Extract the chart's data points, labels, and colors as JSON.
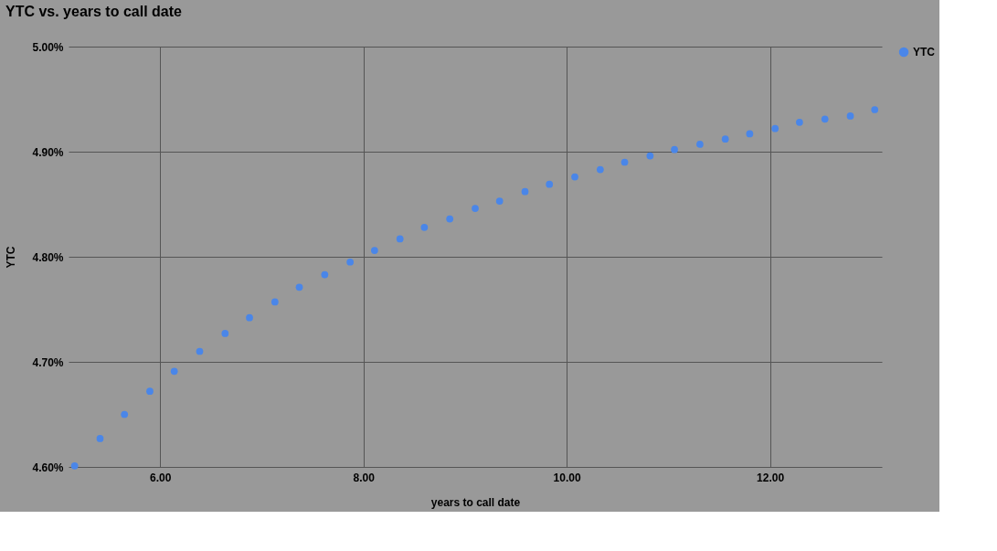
{
  "chart_data": {
    "type": "scatter",
    "title": "YTC vs. years to call date",
    "xlabel": "years to call date",
    "ylabel": "YTC",
    "x": [
      5.16,
      5.41,
      5.65,
      5.9,
      6.14,
      6.39,
      6.64,
      6.88,
      7.13,
      7.37,
      7.62,
      7.87,
      8.11,
      8.36,
      8.6,
      8.85,
      9.1,
      9.34,
      9.59,
      9.83,
      10.08,
      10.33,
      10.57,
      10.82,
      11.06,
      11.31,
      11.56,
      11.8,
      12.05,
      12.29,
      12.54,
      12.79,
      13.03
    ],
    "series": [
      {
        "name": "YTC",
        "color": "#4a86e8",
        "values": [
          4.601,
          4.627,
          4.65,
          4.672,
          4.691,
          4.71,
          4.727,
          4.742,
          4.757,
          4.771,
          4.783,
          4.795,
          4.806,
          4.817,
          4.828,
          4.836,
          4.846,
          4.853,
          4.862,
          4.869,
          4.876,
          4.883,
          4.89,
          4.896,
          4.902,
          4.907,
          4.912,
          4.917,
          4.922,
          4.928,
          4.931,
          4.934,
          4.94
        ]
      }
    ],
    "xlim": [
      5.1,
      13.1
    ],
    "ylim": [
      4.6,
      5.0
    ],
    "xticks": [
      {
        "value": 6,
        "label": "6.00"
      },
      {
        "value": 8,
        "label": "8.00"
      },
      {
        "value": 10,
        "label": "10.00"
      },
      {
        "value": 12,
        "label": "12.00"
      }
    ],
    "yticks": [
      {
        "value": 4.6,
        "label": "4.60%"
      },
      {
        "value": 4.7,
        "label": "4.70%"
      },
      {
        "value": 4.8,
        "label": "4.80%"
      },
      {
        "value": 4.9,
        "label": "4.90%"
      },
      {
        "value": 5.0,
        "label": "5.00%"
      }
    ],
    "grid": true,
    "legend": "top right",
    "marker": "circle"
  }
}
